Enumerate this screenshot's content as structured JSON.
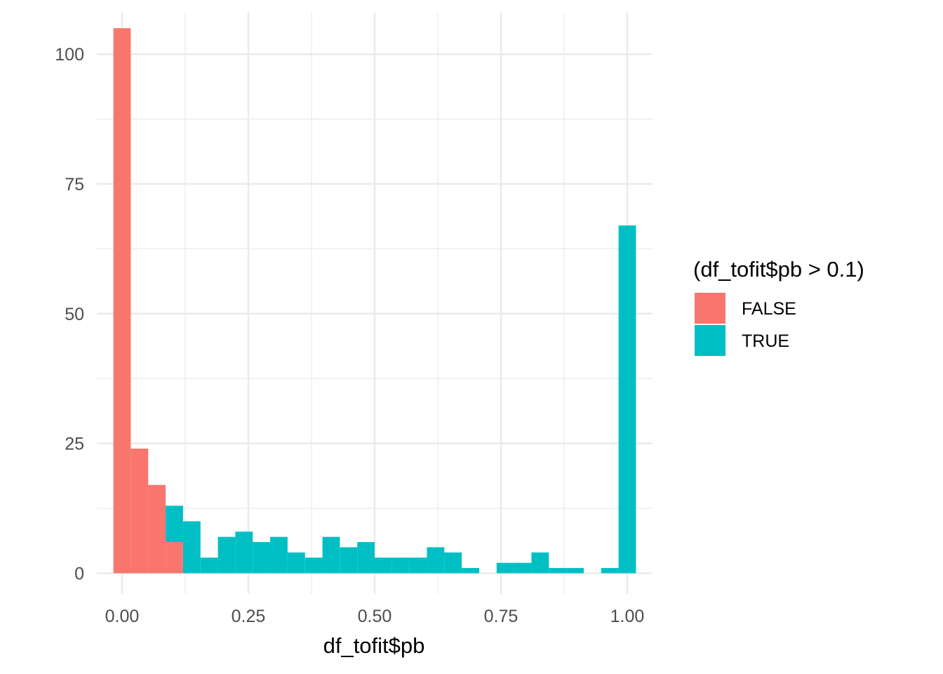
{
  "chart_data": {
    "type": "bar",
    "subtype": "stacked-histogram",
    "title": "",
    "xlabel": "df_tofit$pb",
    "ylabel": "",
    "xlim": [
      -0.05,
      1.05
    ],
    "ylim": [
      -4,
      108
    ],
    "x_ticks": [
      0,
      0.25,
      0.5,
      0.75,
      1
    ],
    "x_tick_labels": [
      "0.00",
      "0.25",
      "0.50",
      "0.75",
      "1.00"
    ],
    "y_ticks": [
      0,
      25,
      50,
      75,
      100
    ],
    "y_tick_labels": [
      "0",
      "25",
      "50",
      "75",
      "100"
    ],
    "grid": true,
    "legend": {
      "title": "(df_tofit$pb > 0.1)",
      "position": "right"
    },
    "bins": [
      [
        -0.0172,
        0.0172
      ],
      [
        0.0172,
        0.0517
      ],
      [
        0.0517,
        0.0862
      ],
      [
        0.0862,
        0.1207
      ],
      [
        0.1207,
        0.1552
      ],
      [
        0.1552,
        0.1897
      ],
      [
        0.1897,
        0.2241
      ],
      [
        0.2241,
        0.2586
      ],
      [
        0.2586,
        0.2931
      ],
      [
        0.2931,
        0.3276
      ],
      [
        0.3276,
        0.3621
      ],
      [
        0.3621,
        0.3966
      ],
      [
        0.3966,
        0.431
      ],
      [
        0.431,
        0.4655
      ],
      [
        0.4655,
        0.5
      ],
      [
        0.5,
        0.5345
      ],
      [
        0.5345,
        0.569
      ],
      [
        0.569,
        0.6034
      ],
      [
        0.6034,
        0.6379
      ],
      [
        0.6379,
        0.6724
      ],
      [
        0.6724,
        0.7069
      ],
      [
        0.7069,
        0.7414
      ],
      [
        0.7414,
        0.7759
      ],
      [
        0.7759,
        0.8103
      ],
      [
        0.8103,
        0.8448
      ],
      [
        0.8448,
        0.8793
      ],
      [
        0.8793,
        0.9138
      ],
      [
        0.9138,
        0.9483
      ],
      [
        0.9483,
        0.9828
      ],
      [
        0.9828,
        1.0172
      ]
    ],
    "series": [
      {
        "name": "FALSE",
        "color": "#F8766D",
        "values": [
          105,
          24,
          17,
          6,
          0,
          0,
          0,
          0,
          0,
          0,
          0,
          0,
          0,
          0,
          0,
          0,
          0,
          0,
          0,
          0,
          0,
          0,
          0,
          0,
          0,
          0,
          0,
          0,
          0,
          0
        ]
      },
      {
        "name": "TRUE",
        "color": "#00BFC4",
        "values": [
          0,
          0,
          0,
          7,
          10,
          3,
          7,
          8,
          6,
          7,
          4,
          3,
          7,
          5,
          6,
          3,
          3,
          3,
          5,
          4,
          1,
          0,
          2,
          2,
          4,
          1,
          1,
          0,
          1,
          67
        ]
      }
    ]
  }
}
